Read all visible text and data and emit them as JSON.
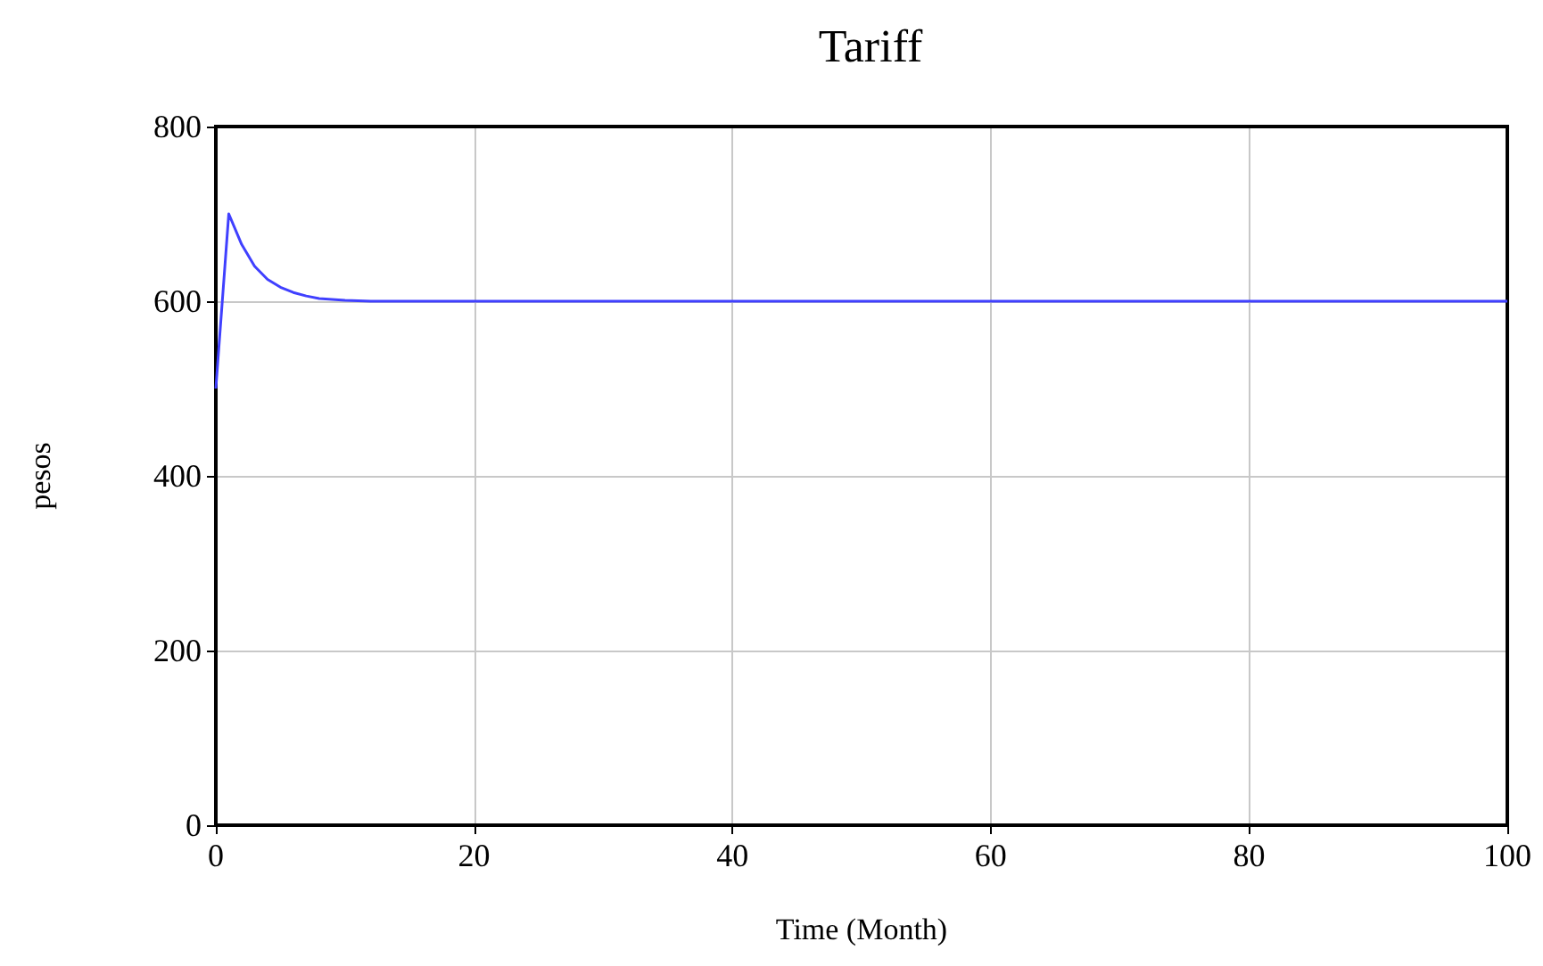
{
  "chart_data": {
    "type": "line",
    "title": "Tariff",
    "xlabel": "Time (Month)",
    "ylabel": "pesos",
    "x": [
      0,
      1,
      2,
      3,
      4,
      5,
      6,
      7,
      8,
      10,
      12,
      14,
      20,
      40,
      60,
      80,
      100
    ],
    "series": [
      {
        "color": "#4040ff",
        "values": [
          500,
          700,
          665,
          640,
          625,
          616,
          610,
          606,
          603,
          601,
          600,
          600,
          600,
          600,
          600,
          600,
          600
        ]
      }
    ],
    "xlim": [
      0,
      100
    ],
    "xticks": [
      0,
      20,
      40,
      60,
      80,
      100
    ],
    "ylim": [
      0,
      800
    ],
    "yticks": [
      0,
      200,
      400,
      600,
      800
    ],
    "grid": true,
    "marker": "none",
    "line_style": "solid"
  }
}
